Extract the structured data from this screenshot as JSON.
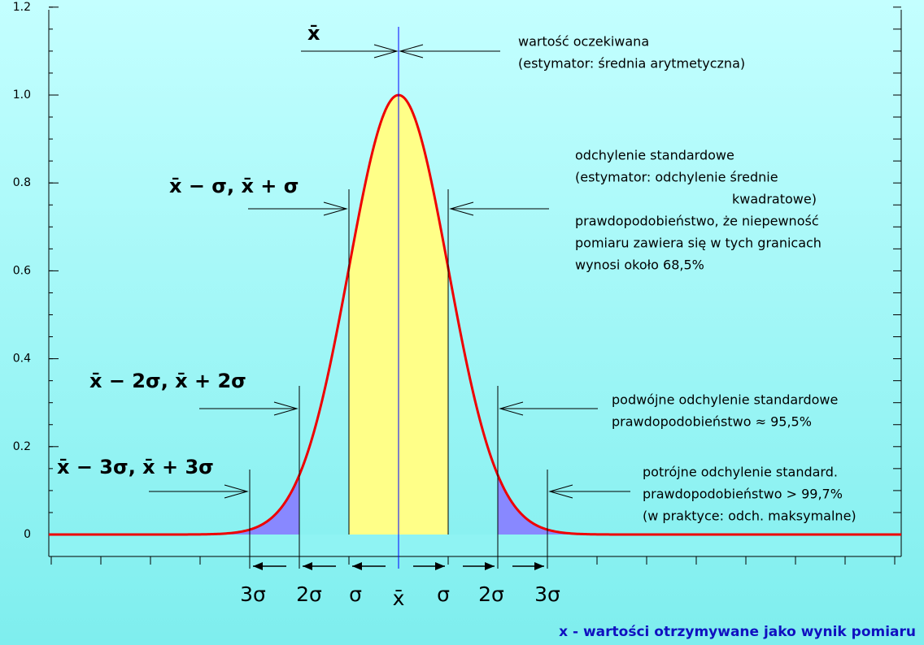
{
  "axis": {
    "ylim": [
      0,
      1.2
    ],
    "yticks": [
      0,
      0.2,
      0.4,
      0.6,
      0.8,
      {
        "value": 1,
        "label": "1.0"
      },
      1.2
    ]
  },
  "mean_label": "x̄",
  "mean_note": [
    "wartość oczekiwana",
    "(estymator:  średnia arytmetyczna)"
  ],
  "sigma1": {
    "label": "x̄ − σ,  x̄ + σ",
    "note": [
      "odchylenie standardowe",
      "(estymator:  odchylenie średnie",
      "kwadratowe)",
      "prawdopodobieństwo, że niepewność",
      "pomiaru zawiera się w tych granicach",
      "wynosi około  68,5%"
    ]
  },
  "sigma2": {
    "label": "x̄ − 2σ,  x̄ + 2σ",
    "note": [
      "podwójne odchylenie standardowe",
      "prawdopodobieństwo ≈ 95,5%"
    ]
  },
  "sigma3": {
    "label": "x̄ − 3σ,  x̄ + 3σ",
    "note": [
      "potrójne odchylenie standard.",
      "prawdopodobieństwo > 99,7%",
      "(w praktyce: odch. maksymalne)"
    ]
  },
  "bottom_labels": [
    "3σ",
    "2σ",
    "σ",
    "x̄",
    "σ",
    "2σ",
    "3σ"
  ],
  "footer": "x - wartości otrzymywane jako wynik pomiaru"
}
